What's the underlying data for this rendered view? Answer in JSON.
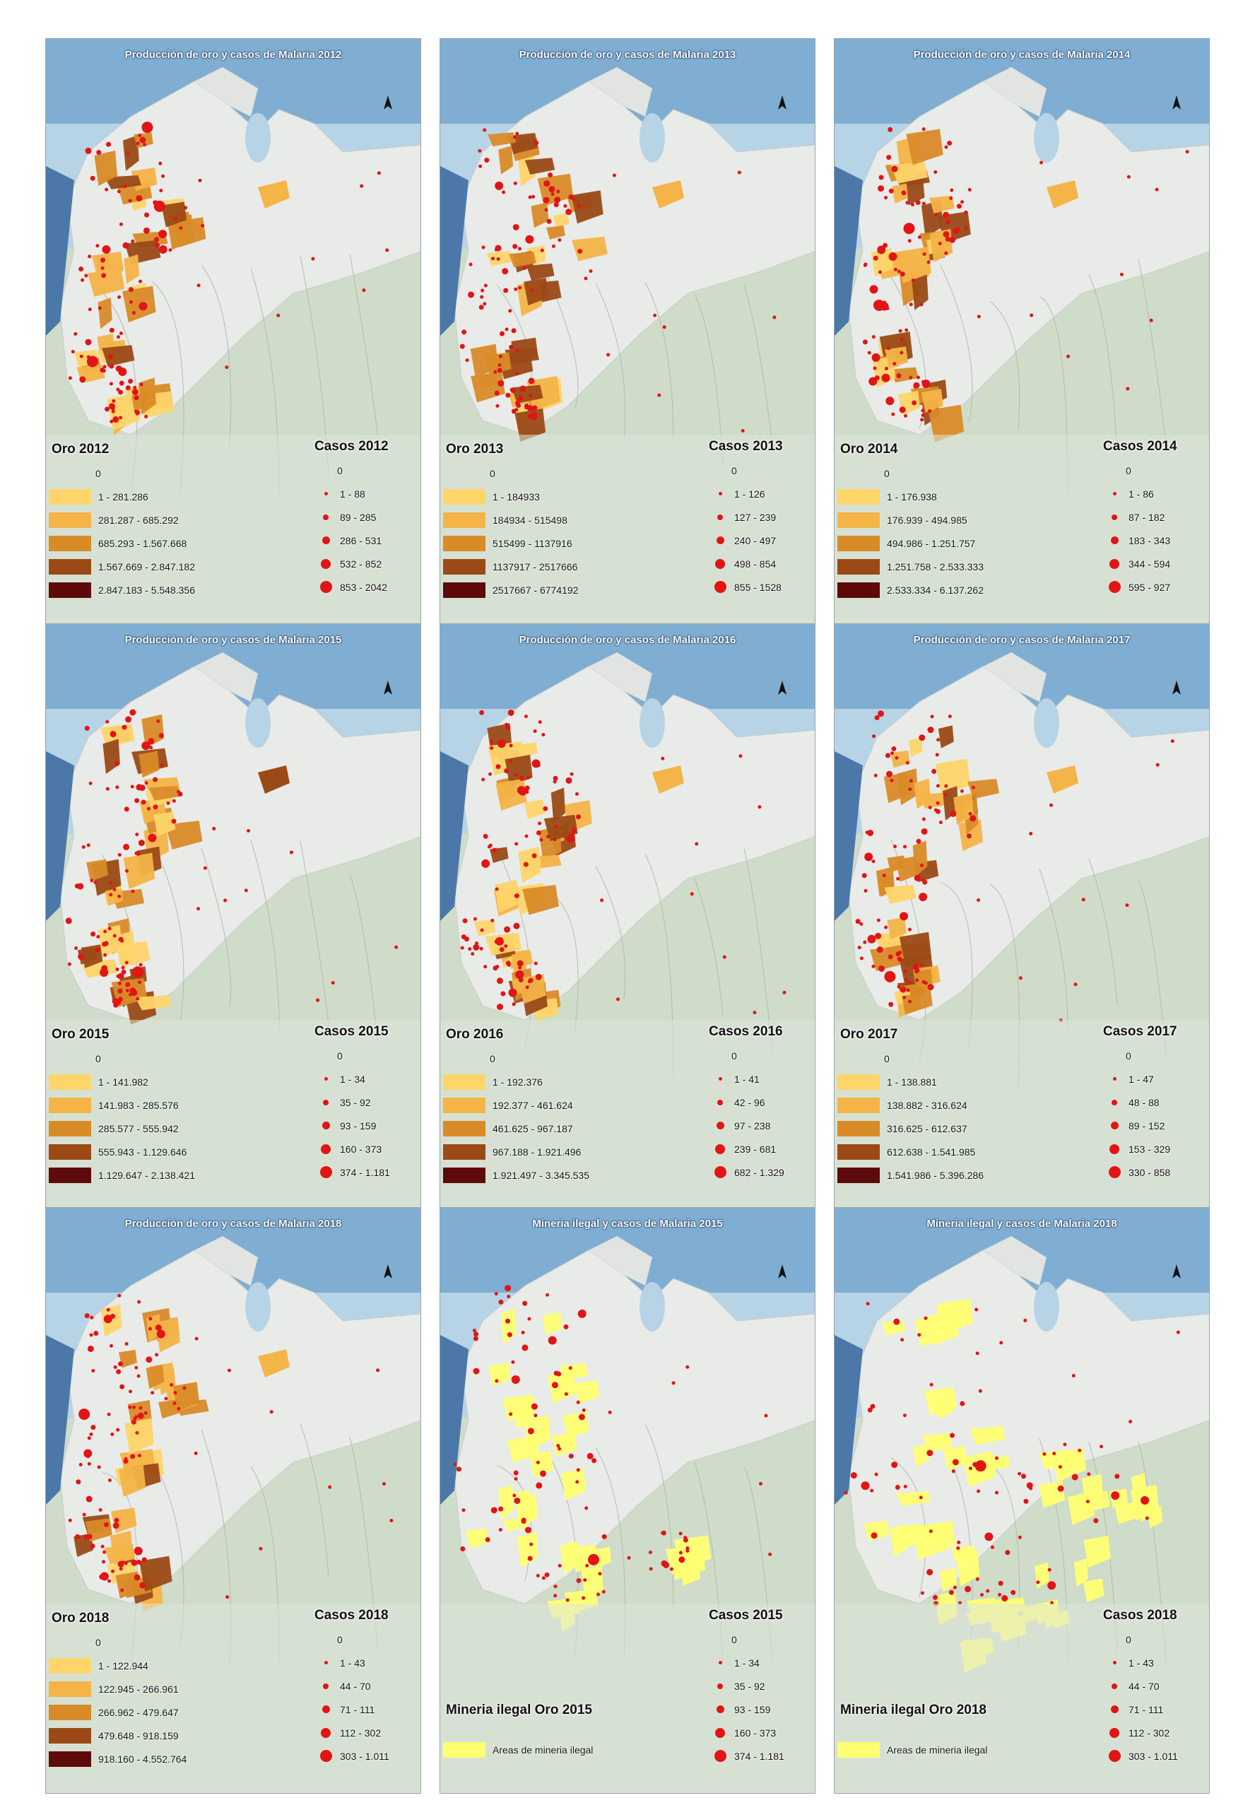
{
  "colors": {
    "class1": "#fed56a",
    "class2": "#f4b448",
    "class3": "#d98b28",
    "class4": "#9b4a16",
    "class5": "#5e0a0a",
    "illegal": "#ffff73",
    "case_dot": "#e11515"
  },
  "panels": [
    {
      "title": "Producción de oro y casos de Malaria 2012",
      "type": "oro",
      "oro_head": "Oro 2012",
      "oro_zero": "0",
      "oro_classes": [
        "1 - 281.286",
        "281.287 - 685.292",
        "685.293 - 1.567.668",
        "1.567.669 - 2.847.182",
        "2.847.183 - 5.548.356"
      ],
      "casos_head": "Casos 2012",
      "casos_zero": "0",
      "casos_classes": [
        "1 - 88",
        "89 - 285",
        "286 - 531",
        "532 - 852",
        "853 - 2042"
      ]
    },
    {
      "title": "Producción de oro y casos de Malaria 2013",
      "type": "oro",
      "oro_head": "Oro 2013",
      "oro_zero": "0",
      "oro_classes": [
        "1 - 184933",
        "184934 - 515498",
        "515499 - 1137916",
        "1137917 - 2517666",
        "2517667 - 6774192"
      ],
      "casos_head": "Casos 2013",
      "casos_zero": "0",
      "casos_classes": [
        "1 - 126",
        "127 - 239",
        "240 - 497",
        "498 - 854",
        "855 - 1528"
      ]
    },
    {
      "title": "Producción de oro y casos de Malaria 2014",
      "type": "oro",
      "oro_head": "Oro 2014",
      "oro_zero": "0",
      "oro_classes": [
        "1 - 176.938",
        "176.939 - 494.985",
        "494.986 - 1.251.757",
        "1.251.758 - 2.533.333",
        "2.533.334 - 6.137.262"
      ],
      "casos_head": "Casos 2014",
      "casos_zero": "0",
      "casos_classes": [
        "1 - 86",
        "87 - 182",
        "183 - 343",
        "344 - 594",
        "595 - 927"
      ]
    },
    {
      "title": "Producción de oro y casos de Malaria 2015",
      "type": "oro",
      "oro_head": "Oro 2015",
      "oro_zero": "0",
      "oro_classes": [
        "1 - 141.982",
        "141.983 - 285.576",
        "285.577 - 555.942",
        "555.943 - 1.129.646",
        "1.129.647 - 2.138.421"
      ],
      "casos_head": "Casos 2015",
      "casos_zero": "0",
      "casos_classes": [
        "1 - 34",
        "35 - 92",
        "93 - 159",
        "160 - 373",
        "374 - 1.181"
      ]
    },
    {
      "title": "Producción de oro y casos de Malaria 2016",
      "type": "oro",
      "oro_head": "Oro 2016",
      "oro_zero": "0",
      "oro_classes": [
        "1 - 192.376",
        "192.377 - 461.624",
        "461.625 - 967.187",
        "967.188 - 1.921.496",
        "1.921.497 - 3.345.535"
      ],
      "casos_head": "Casos 2016",
      "casos_zero": "0",
      "casos_classes": [
        "1 - 41",
        "42 - 96",
        "97 - 238",
        "239 - 681",
        "682 - 1.329"
      ]
    },
    {
      "title": "Producción de oro y casos de Malaria 2017",
      "type": "oro",
      "oro_head": "Oro 2017",
      "oro_zero": "0",
      "oro_classes": [
        "1 - 138.881",
        "138.882 - 316.624",
        "316.625 - 612.637",
        "612.638 - 1.541.985",
        "1.541.986 - 5.396.286"
      ],
      "casos_head": "Casos 2017",
      "casos_zero": "0",
      "casos_classes": [
        "1 - 47",
        "48 - 88",
        "89 - 152",
        "153 - 329",
        "330 - 858"
      ]
    },
    {
      "title": "Producción de oro y casos de Malaria 2018",
      "type": "oro",
      "oro_head": "Oro 2018",
      "oro_zero": "0",
      "oro_classes": [
        "1 - 122.944",
        "122.945 - 266.961",
        "266.962 - 479.647",
        "479.648 - 918.159",
        "918.160 - 4.552.764"
      ],
      "casos_head": "Casos 2018",
      "casos_zero": "0",
      "casos_classes": [
        "1 - 43",
        "44 - 70",
        "71 - 111",
        "112 - 302",
        "303 - 1.011"
      ]
    },
    {
      "title": "Mineria ilegal y  casos de Malaria 2015",
      "type": "ilegal",
      "ilegal_head": "Mineria ilegal Oro 2015",
      "ilegal_label": "Areas de mineria ilegal",
      "casos_head": "Casos 2015",
      "casos_zero": "0",
      "casos_classes": [
        "1 - 34",
        "35 - 92",
        "93 - 159",
        "160 - 373",
        "374 - 1.181"
      ]
    },
    {
      "title": "Mineria ilegal y  casos de Malaria 2018",
      "type": "ilegal",
      "ilegal_head": "Mineria ilegal Oro 2018",
      "ilegal_label": "Areas de mineria ilegal",
      "casos_head": "Casos 2018",
      "casos_zero": "0",
      "casos_classes": [
        "1 - 43",
        "44 - 70",
        "71 - 111",
        "112 - 302",
        "303 - 1.011"
      ]
    }
  ]
}
